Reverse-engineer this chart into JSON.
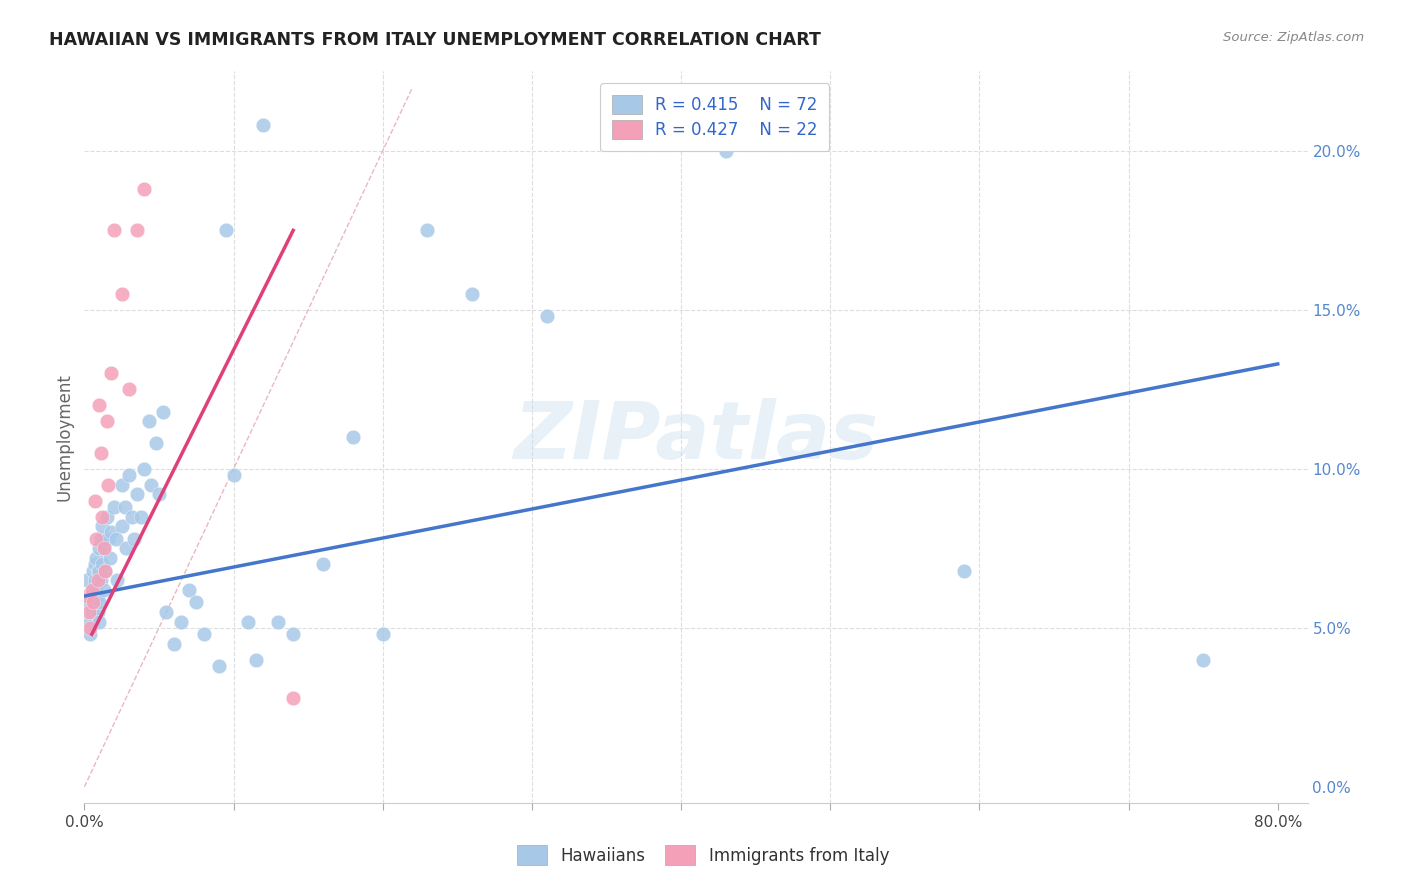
{
  "title": "HAWAIIAN VS IMMIGRANTS FROM ITALY UNEMPLOYMENT CORRELATION CHART",
  "source": "Source: ZipAtlas.com",
  "ylabel": "Unemployment",
  "xlim": [
    0,
    0.82
  ],
  "ylim": [
    -0.005,
    0.225
  ],
  "legend_r1": "R = 0.415",
  "legend_n1": "N = 72",
  "legend_r2": "R = 0.427",
  "legend_n2": "N = 22",
  "color_blue": "#a8c8e8",
  "color_pink": "#f4a0b8",
  "line_blue": "#4477cc",
  "line_pink": "#e0407a",
  "line_diag_color": "#e8b0b8",
  "watermark": "ZIPatlas",
  "blue_line_x0": 0.0,
  "blue_line_y0": 0.06,
  "blue_line_x1": 0.8,
  "blue_line_y1": 0.133,
  "pink_line_x0": 0.005,
  "pink_line_y0": 0.048,
  "pink_line_x1": 0.14,
  "pink_line_y1": 0.175,
  "hawaiians_x": [
    0.002,
    0.003,
    0.004,
    0.004,
    0.005,
    0.005,
    0.006,
    0.006,
    0.007,
    0.007,
    0.007,
    0.008,
    0.008,
    0.009,
    0.009,
    0.009,
    0.01,
    0.01,
    0.01,
    0.01,
    0.011,
    0.011,
    0.012,
    0.012,
    0.013,
    0.013,
    0.014,
    0.015,
    0.016,
    0.017,
    0.018,
    0.02,
    0.021,
    0.022,
    0.025,
    0.025,
    0.027,
    0.028,
    0.03,
    0.032,
    0.033,
    0.035,
    0.038,
    0.04,
    0.043,
    0.045,
    0.048,
    0.05,
    0.053,
    0.055,
    0.06,
    0.065,
    0.07,
    0.075,
    0.08,
    0.09,
    0.095,
    0.1,
    0.11,
    0.115,
    0.12,
    0.13,
    0.14,
    0.16,
    0.18,
    0.2,
    0.23,
    0.26,
    0.31,
    0.43,
    0.59,
    0.75
  ],
  "hawaiians_y": [
    0.065,
    0.058,
    0.052,
    0.048,
    0.06,
    0.055,
    0.068,
    0.062,
    0.07,
    0.065,
    0.058,
    0.072,
    0.062,
    0.068,
    0.06,
    0.055,
    0.075,
    0.068,
    0.058,
    0.052,
    0.078,
    0.065,
    0.082,
    0.07,
    0.075,
    0.062,
    0.068,
    0.085,
    0.078,
    0.072,
    0.08,
    0.088,
    0.078,
    0.065,
    0.095,
    0.082,
    0.088,
    0.075,
    0.098,
    0.085,
    0.078,
    0.092,
    0.085,
    0.1,
    0.115,
    0.095,
    0.108,
    0.092,
    0.118,
    0.055,
    0.045,
    0.052,
    0.062,
    0.058,
    0.048,
    0.038,
    0.175,
    0.098,
    0.052,
    0.04,
    0.208,
    0.052,
    0.048,
    0.07,
    0.11,
    0.048,
    0.175,
    0.155,
    0.148,
    0.2,
    0.068,
    0.04
  ],
  "italy_x": [
    0.002,
    0.003,
    0.004,
    0.005,
    0.006,
    0.007,
    0.008,
    0.009,
    0.01,
    0.011,
    0.012,
    0.013,
    0.014,
    0.015,
    0.016,
    0.018,
    0.02,
    0.025,
    0.03,
    0.035,
    0.04,
    0.14
  ],
  "italy_y": [
    0.06,
    0.055,
    0.05,
    0.062,
    0.058,
    0.09,
    0.078,
    0.065,
    0.12,
    0.105,
    0.085,
    0.075,
    0.068,
    0.115,
    0.095,
    0.13,
    0.175,
    0.155,
    0.125,
    0.175,
    0.188,
    0.028
  ]
}
